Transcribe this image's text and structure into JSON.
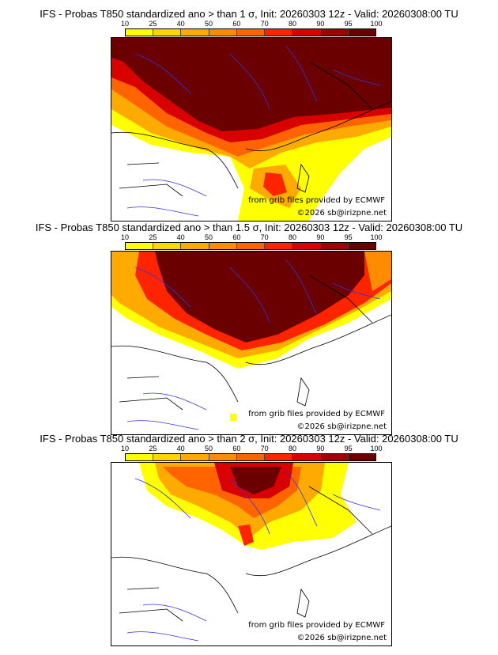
{
  "colorbar": {
    "labels": [
      "10",
      "25",
      "40",
      "50",
      "60",
      "70",
      "80",
      "90",
      "95",
      "100"
    ],
    "colors": [
      "#ffff00",
      "#ffd500",
      "#ffaa00",
      "#ff8c00",
      "#ff6400",
      "#ff2400",
      "#d80000",
      "#a00000",
      "#6a0000"
    ]
  },
  "panels": [
    {
      "title": "IFS - Probas T850  standardized ano > than 1 σ, Init: 20260303 12z - Valid: 20260308:00 TU"
    },
    {
      "title": "IFS - Probas T850  standardized ano > than 1.5 σ, Init: 20260303 12z - Valid: 20260308:00 TU"
    },
    {
      "title": "IFS - Probas T850  standardized ano > than 2 σ, Init: 20260303 12z - Valid: 20260308:00 TU"
    }
  ],
  "credits": {
    "source": "from grib files provided by ECMWF",
    "copyright": "©2026 sb@irizpne.net"
  }
}
